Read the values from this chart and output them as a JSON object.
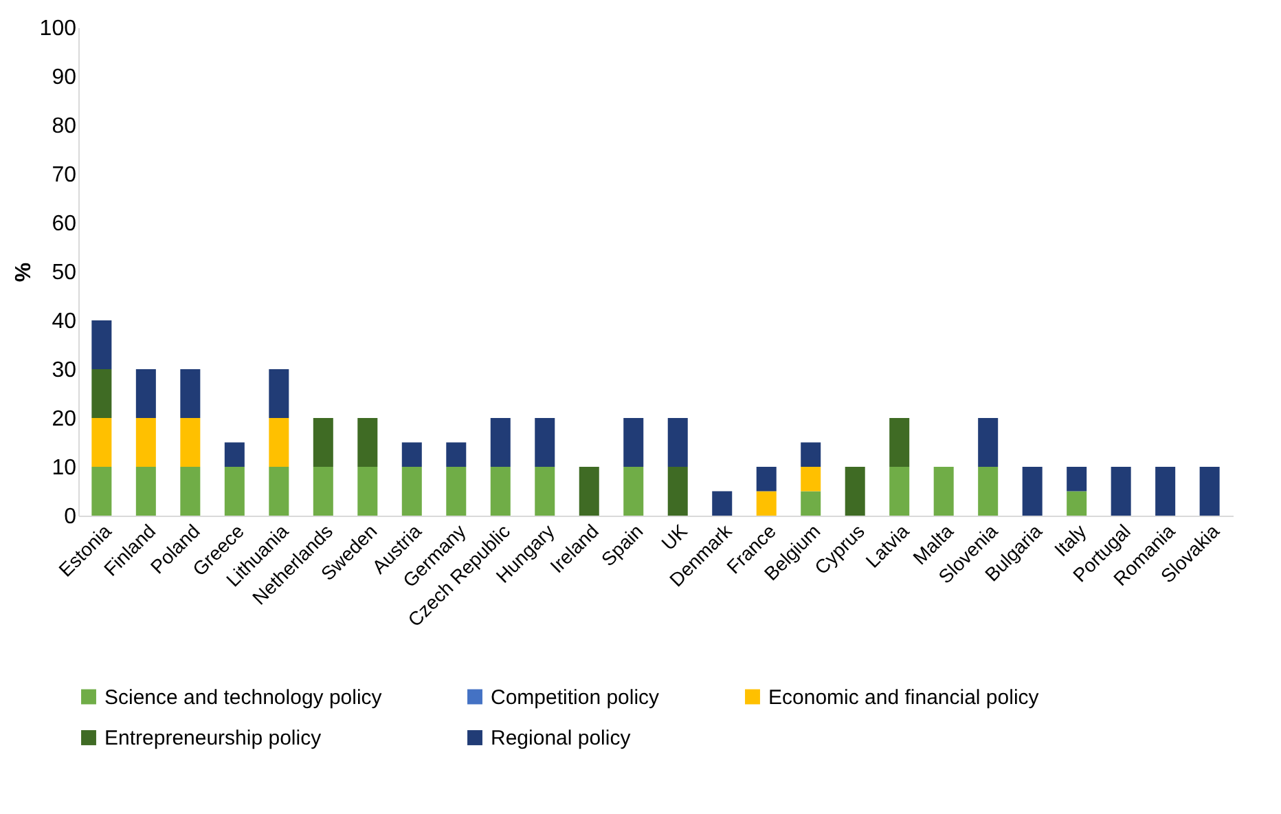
{
  "chart_data": {
    "type": "bar",
    "stacked": true,
    "ylabel": "%",
    "ylim": [
      0,
      100
    ],
    "yticks": [
      0,
      10,
      20,
      30,
      40,
      50,
      60,
      70,
      80,
      90,
      100
    ],
    "grid": false,
    "legend": "bottom",
    "categories": [
      "Estonia",
      "Finland",
      "Poland",
      "Greece",
      "Lithuania",
      "Netherlands",
      "Sweden",
      "Austria",
      "Germany",
      "Czech Republic",
      "Hungary",
      "Ireland",
      "Spain",
      "UK",
      "Denmark",
      "France",
      "Belgium",
      "Cyprus",
      "Latvia",
      "Malta",
      "Slovenia",
      "Bulgaria",
      "Italy",
      "Portugal",
      "Romania",
      "Slovakia"
    ],
    "series": [
      {
        "name": "Science and technology policy",
        "color": "#70ad47",
        "values": [
          10,
          10,
          10,
          10,
          10,
          10,
          10,
          10,
          10,
          10,
          10,
          0,
          10,
          0,
          0,
          0,
          5,
          0,
          10,
          10,
          10,
          0,
          5,
          0,
          0,
          0
        ]
      },
      {
        "name": "Competition policy",
        "color": "#4472c4",
        "values": [
          0,
          0,
          0,
          0,
          0,
          0,
          0,
          0,
          0,
          0,
          0,
          0,
          0,
          0,
          0,
          0,
          0,
          0,
          0,
          0,
          0,
          0,
          0,
          0,
          0,
          0
        ]
      },
      {
        "name": "Economic and financial policy",
        "color": "#ffc000",
        "values": [
          10,
          10,
          10,
          0,
          10,
          0,
          0,
          0,
          0,
          0,
          0,
          0,
          0,
          0,
          0,
          5,
          5,
          0,
          0,
          0,
          0,
          0,
          0,
          0,
          0,
          0
        ]
      },
      {
        "name": "Entrepreneurship policy",
        "color": "#3f6b24",
        "values": [
          10,
          0,
          0,
          0,
          0,
          10,
          10,
          0,
          0,
          0,
          0,
          10,
          0,
          10,
          0,
          0,
          0,
          10,
          10,
          0,
          0,
          0,
          0,
          0,
          0,
          0
        ]
      },
      {
        "name": "Regional policy",
        "color": "#213c76",
        "values": [
          10,
          10,
          10,
          5,
          10,
          0,
          0,
          5,
          5,
          10,
          10,
          0,
          10,
          10,
          5,
          5,
          5,
          0,
          0,
          0,
          10,
          10,
          5,
          10,
          10,
          10
        ]
      }
    ]
  }
}
